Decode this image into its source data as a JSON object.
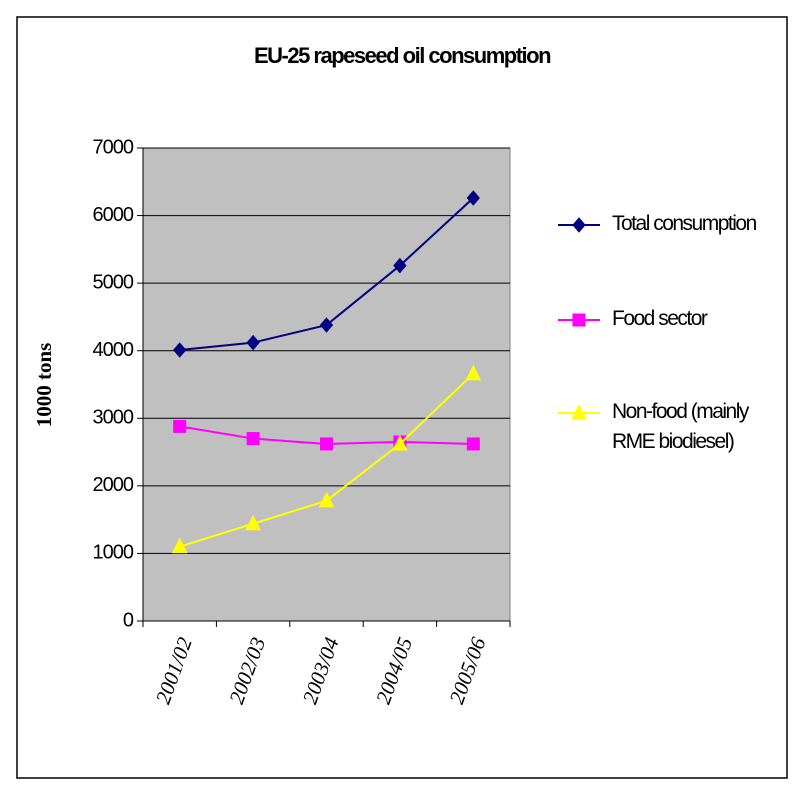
{
  "chart_data": {
    "type": "line",
    "title": "EU-25 rapeseed oil consumption",
    "y_label": "1000 tons",
    "categories": [
      "2001/02",
      "2002/03",
      "2003/04",
      "2004/05",
      "2005/06"
    ],
    "series": [
      {
        "name": "Total consumption",
        "color": "#000080",
        "marker": "diamond",
        "values": [
          4010,
          4120,
          4380,
          5260,
          6260
        ]
      },
      {
        "name": "Food sector",
        "color": "#ff00ff",
        "marker": "square",
        "values": [
          2880,
          2700,
          2620,
          2650,
          2620
        ]
      },
      {
        "name": "Non-food (mainly RME biodiesel)",
        "color": "#ffff00",
        "marker": "triangle",
        "values": [
          1100,
          1440,
          1780,
          2620,
          3660
        ]
      }
    ],
    "ylim": [
      0,
      7000
    ],
    "yticks": [
      0,
      1000,
      2000,
      3000,
      4000,
      5000,
      6000,
      7000
    ],
    "grid": true,
    "legend": "right"
  }
}
